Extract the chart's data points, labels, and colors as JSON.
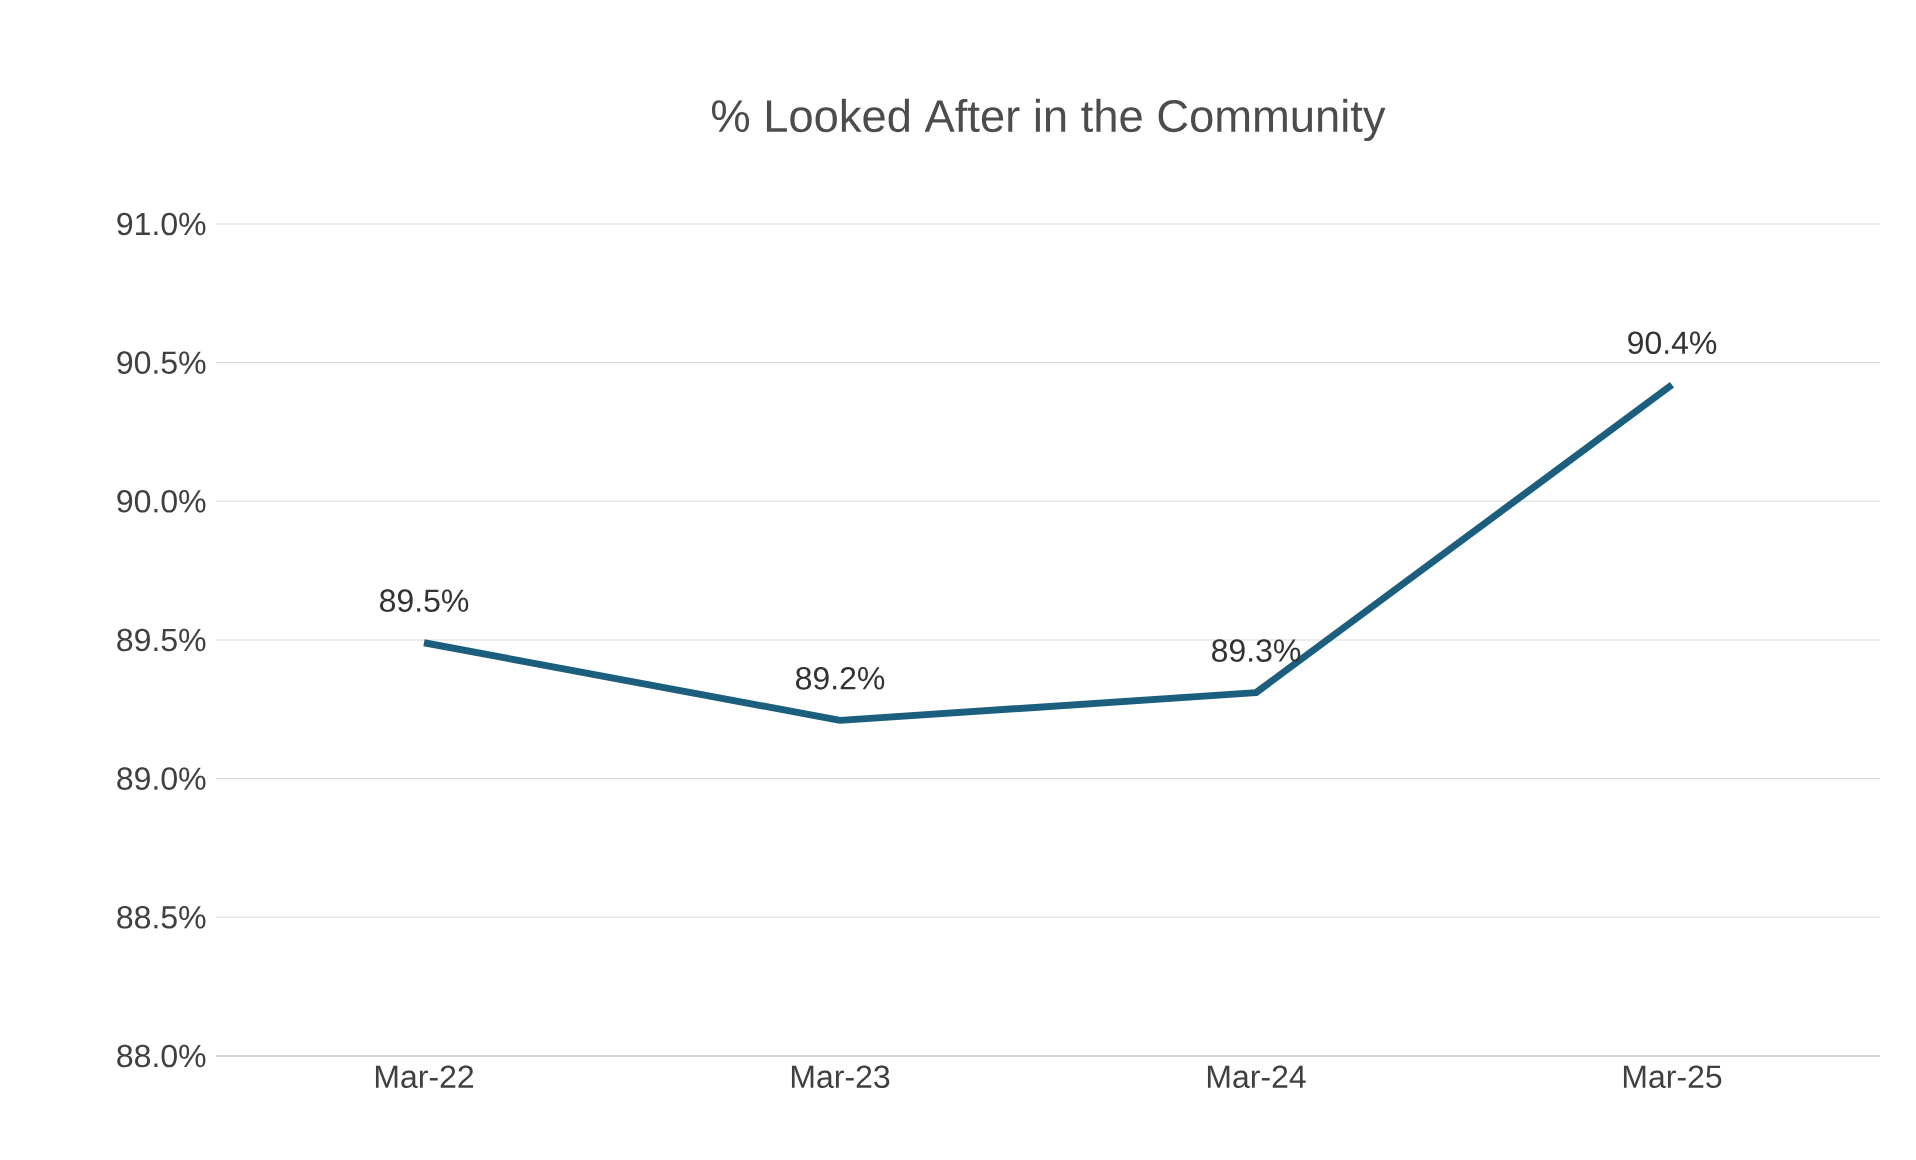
{
  "chart_data": {
    "type": "line",
    "title": "% Looked After in the Community",
    "categories": [
      "Mar-22",
      "Mar-23",
      "Mar-24",
      "Mar-25"
    ],
    "values": [
      89.49,
      89.21,
      89.31,
      90.42
    ],
    "value_labels": [
      "89.5%",
      "89.2%",
      "89.3%",
      "90.4%"
    ],
    "color": "#1b5e7e",
    "ylim": [
      88.0,
      91.0
    ],
    "yticks": [
      {
        "value": 88.0,
        "label": "88.0%"
      },
      {
        "value": 88.5,
        "label": "88.5%"
      },
      {
        "value": 89.0,
        "label": "89.0%"
      },
      {
        "value": 89.5,
        "label": "89.5%"
      },
      {
        "value": 90.0,
        "label": "90.0%"
      },
      {
        "value": 90.5,
        "label": "90.5%"
      },
      {
        "value": 91.0,
        "label": "91.0%"
      }
    ],
    "grid": "y",
    "marker": "none",
    "line_style": "solid"
  }
}
